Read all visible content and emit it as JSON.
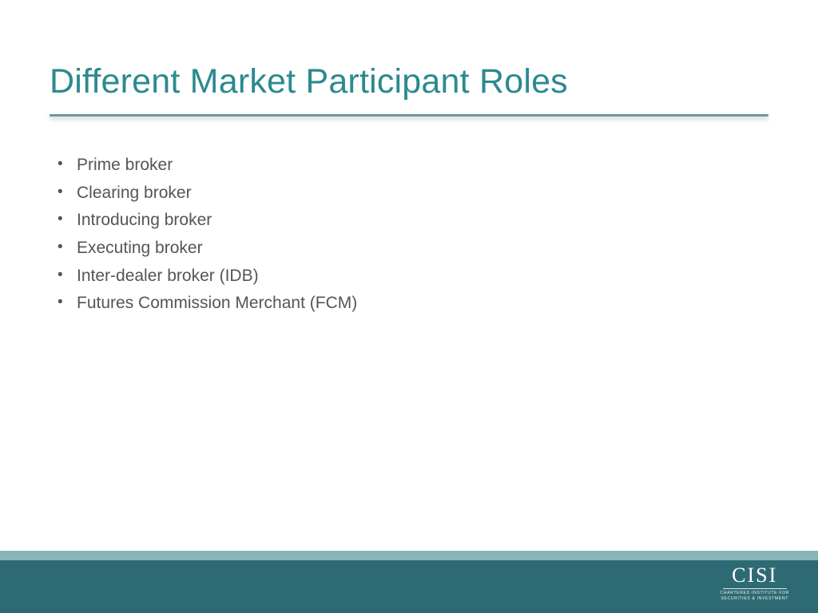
{
  "slide": {
    "title": "Different Market Participant Roles",
    "title_color": "#2b8a8f",
    "title_fontsize": 43,
    "background_color": "#ffffff",
    "divider_color": "#6a9aa0",
    "bullets": {
      "items": [
        "Prime broker",
        "Clearing broker",
        "Introducing broker",
        "Executing broker",
        "Inter-dealer broker (IDB)",
        "Futures Commission Merchant (FCM)"
      ],
      "text_color": "#555555",
      "fontsize": 21
    },
    "footer": {
      "accent_color": "#89b3b6",
      "main_color": "#2e6a74",
      "logo_text": "CISI",
      "logo_sub1": "CHARTERED INSTITUTE FOR",
      "logo_sub2": "SECURITIES & INVESTMENT"
    }
  }
}
